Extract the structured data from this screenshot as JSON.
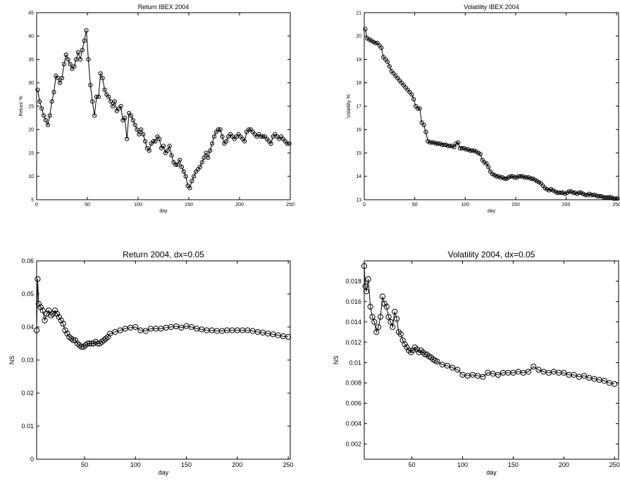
{
  "chart_data": [
    {
      "type": "line",
      "title": "Return IBEX 2004",
      "xlabel": "day",
      "ylabel": "Return %",
      "xlim": [
        0,
        250
      ],
      "ylim": [
        5,
        45
      ],
      "xticks": [
        0,
        50,
        100,
        150,
        200,
        250
      ],
      "yticks": [
        5,
        10,
        15,
        20,
        25,
        30,
        35,
        40,
        45
      ],
      "marker": "open-circle",
      "series": [
        {
          "name": "",
          "x": [
            1,
            3,
            5,
            7,
            9,
            11,
            13,
            15,
            17,
            19,
            21,
            23,
            25,
            27,
            29,
            31,
            33,
            35,
            37,
            39,
            41,
            43,
            45,
            47,
            49,
            51,
            53,
            55,
            57,
            59,
            61,
            63,
            65,
            67,
            69,
            71,
            73,
            75,
            77,
            79,
            81,
            83,
            85,
            87,
            89,
            91,
            93,
            95,
            97,
            99,
            101,
            103,
            105,
            107,
            109,
            111,
            113,
            115,
            117,
            119,
            121,
            123,
            125,
            127,
            129,
            131,
            133,
            135,
            137,
            139,
            141,
            143,
            145,
            147,
            149,
            151,
            153,
            155,
            157,
            159,
            161,
            163,
            165,
            167,
            169,
            171,
            173,
            175,
            177,
            179,
            181,
            183,
            185,
            187,
            189,
            191,
            193,
            195,
            197,
            199,
            201,
            203,
            205,
            207,
            209,
            211,
            213,
            215,
            217,
            219,
            221,
            223,
            225,
            227,
            229,
            231,
            233,
            235,
            237,
            239,
            241,
            243,
            245,
            247,
            249
          ],
          "y": [
            28.5,
            26,
            24.5,
            23,
            22,
            21,
            23,
            26,
            28,
            31.5,
            31,
            30,
            31,
            34,
            36,
            35,
            34,
            33,
            33.5,
            35,
            36.5,
            35,
            37,
            39,
            41.2,
            35,
            29.5,
            26,
            23,
            27,
            27,
            32,
            31,
            28.5,
            27.5,
            27,
            26,
            25,
            26,
            24,
            24.5,
            25,
            22,
            22.5,
            18,
            23.5,
            23,
            22,
            21,
            20,
            19,
            20,
            19,
            17.5,
            16,
            15.5,
            17,
            17.5,
            17.5,
            18.5,
            18,
            16,
            16.5,
            15,
            15.5,
            16.5,
            14.5,
            13,
            12.5,
            12.5,
            13.5,
            12,
            11,
            10,
            8,
            7.5,
            9,
            10,
            11,
            11.5,
            12,
            13,
            14,
            15,
            14,
            15.5,
            17,
            18.5,
            19.5,
            20,
            20,
            18.5,
            17,
            17.5,
            18.5,
            19,
            18.5,
            18,
            18.5,
            19,
            18.5,
            18,
            17.5,
            19.5,
            20,
            20,
            19.5,
            19,
            18.5,
            19,
            18.5,
            18.5,
            18.5,
            18,
            17.5,
            17,
            18.5,
            19,
            18.5,
            18,
            18.5,
            18,
            17.5,
            17,
            17
          ]
        }
      ]
    },
    {
      "type": "line",
      "title": "Volatility IBEX 2004",
      "xlabel": "day",
      "ylabel": "Volatility %",
      "xlim": [
        0,
        252
      ],
      "ylim": [
        13,
        21
      ],
      "xticks": [
        0,
        50,
        100,
        150,
        200,
        250
      ],
      "yticks": [
        13,
        14,
        15,
        16,
        17,
        18,
        19,
        20,
        21
      ],
      "marker": "open-circle",
      "series": [
        {
          "name": "",
          "x": [
            1,
            3,
            5,
            7,
            9,
            11,
            13,
            15,
            17,
            19,
            21,
            23,
            25,
            27,
            29,
            31,
            33,
            35,
            37,
            39,
            41,
            43,
            45,
            47,
            49,
            51,
            53,
            55,
            57,
            59,
            61,
            63,
            65,
            67,
            69,
            71,
            73,
            75,
            77,
            79,
            81,
            83,
            85,
            87,
            89,
            91,
            93,
            95,
            97,
            99,
            101,
            103,
            105,
            107,
            109,
            111,
            113,
            115,
            117,
            119,
            121,
            123,
            125,
            127,
            129,
            131,
            133,
            135,
            137,
            139,
            141,
            143,
            145,
            147,
            149,
            151,
            153,
            155,
            157,
            159,
            161,
            163,
            165,
            167,
            169,
            171,
            173,
            175,
            177,
            179,
            181,
            183,
            185,
            187,
            189,
            191,
            193,
            195,
            197,
            199,
            201,
            203,
            205,
            207,
            209,
            211,
            213,
            215,
            217,
            219,
            221,
            223,
            225,
            227,
            229,
            231,
            233,
            235,
            237,
            239,
            241,
            243,
            245,
            247,
            249,
            251
          ],
          "y": [
            20.3,
            19.9,
            19.85,
            19.8,
            19.75,
            19.7,
            19.7,
            19.6,
            19.5,
            19.1,
            19.0,
            18.9,
            18.7,
            18.5,
            18.4,
            18.3,
            18.2,
            18.1,
            18.0,
            17.9,
            17.8,
            17.7,
            17.6,
            17.5,
            17.3,
            17.0,
            16.9,
            16.9,
            16.3,
            16.2,
            15.9,
            15.5,
            15.45,
            15.45,
            15.45,
            15.4,
            15.4,
            15.4,
            15.35,
            15.35,
            15.35,
            15.3,
            15.3,
            15.3,
            15.25,
            15.4,
            15.45,
            15.2,
            15.2,
            15.2,
            15.15,
            15.15,
            15.1,
            15.1,
            15.1,
            15.05,
            15.0,
            14.95,
            14.7,
            14.6,
            14.55,
            14.4,
            14.2,
            14.1,
            14.05,
            14.0,
            14.0,
            13.95,
            13.95,
            13.9,
            13.9,
            13.95,
            14.0,
            14.0,
            13.95,
            13.95,
            14.0,
            14.0,
            14.0,
            13.95,
            13.95,
            13.95,
            13.9,
            13.9,
            13.85,
            13.8,
            13.75,
            13.7,
            13.6,
            13.5,
            13.45,
            13.4,
            13.45,
            13.4,
            13.35,
            13.3,
            13.3,
            13.3,
            13.3,
            13.25,
            13.3,
            13.35,
            13.35,
            13.3,
            13.3,
            13.25,
            13.3,
            13.3,
            13.25,
            13.2,
            13.2,
            13.25,
            13.2,
            13.2,
            13.2,
            13.15,
            13.15,
            13.15,
            13.1,
            13.1,
            13.1,
            13.1,
            13.1,
            13.05,
            13.05,
            13.05
          ]
        }
      ]
    },
    {
      "type": "line",
      "title": "Return 2004, dx=0.05",
      "xlabel": "day",
      "ylabel": "NS",
      "xlim": [
        3,
        252
      ],
      "ylim": [
        0,
        0.06
      ],
      "xticks": [
        50,
        100,
        150,
        200,
        250
      ],
      "yticks": [
        0,
        0.01,
        0.02,
        0.03,
        0.04,
        0.05,
        0.06
      ],
      "marker": "open-circle",
      "series": [
        {
          "name": "",
          "x": [
            3,
            4,
            5,
            7,
            9,
            11,
            13,
            15,
            17,
            19,
            21,
            23,
            25,
            27,
            29,
            31,
            33,
            35,
            37,
            39,
            41,
            43,
            45,
            47,
            49,
            51,
            53,
            55,
            57,
            59,
            61,
            63,
            65,
            67,
            69,
            71,
            73,
            75,
            80,
            85,
            90,
            95,
            100,
            105,
            110,
            115,
            120,
            125,
            130,
            135,
            140,
            145,
            150,
            155,
            160,
            165,
            170,
            175,
            180,
            185,
            190,
            195,
            200,
            205,
            210,
            215,
            220,
            225,
            230,
            235,
            240,
            245,
            250
          ],
          "y": [
            0.039,
            0.0545,
            0.047,
            0.046,
            0.045,
            0.042,
            0.044,
            0.045,
            0.0435,
            0.044,
            0.045,
            0.044,
            0.043,
            0.042,
            0.041,
            0.039,
            0.038,
            0.037,
            0.0365,
            0.036,
            0.036,
            0.035,
            0.0345,
            0.034,
            0.034,
            0.0345,
            0.035,
            0.035,
            0.035,
            0.035,
            0.0355,
            0.035,
            0.035,
            0.0355,
            0.036,
            0.0365,
            0.037,
            0.038,
            0.0385,
            0.039,
            0.0395,
            0.0398,
            0.04,
            0.039,
            0.0388,
            0.0395,
            0.0395,
            0.0395,
            0.0398,
            0.04,
            0.0402,
            0.0398,
            0.0403,
            0.04,
            0.0395,
            0.0393,
            0.039,
            0.039,
            0.0388,
            0.0388,
            0.039,
            0.039,
            0.039,
            0.039,
            0.039,
            0.0388,
            0.0385,
            0.0383,
            0.038,
            0.0378,
            0.0375,
            0.0372,
            0.037
          ]
        }
      ]
    },
    {
      "type": "line",
      "title": "Volatility 2004, dx=0.05",
      "xlabel": "day",
      "ylabel": "NS",
      "xlim": [
        3,
        254
      ],
      "ylim": [
        0.0005,
        0.02
      ],
      "xticks": [
        50,
        100,
        150,
        200,
        250
      ],
      "yticks": [
        0.002,
        0.004,
        0.006,
        0.008,
        0.01,
        0.012,
        0.014,
        0.016,
        0.018
      ],
      "marker": "open-circle",
      "series": [
        {
          "name": "",
          "x": [
            3,
            4,
            5,
            7,
            9,
            11,
            13,
            15,
            17,
            19,
            21,
            23,
            25,
            27,
            29,
            31,
            33,
            35,
            37,
            39,
            41,
            43,
            45,
            47,
            49,
            51,
            53,
            55,
            57,
            59,
            61,
            63,
            65,
            67,
            69,
            71,
            73,
            75,
            80,
            85,
            90,
            95,
            100,
            105,
            110,
            115,
            120,
            125,
            130,
            135,
            140,
            145,
            150,
            155,
            160,
            165,
            170,
            175,
            180,
            185,
            190,
            195,
            200,
            205,
            210,
            215,
            220,
            225,
            230,
            235,
            240,
            245,
            250
          ],
          "y": [
            0.0195,
            0.0175,
            0.017,
            0.0182,
            0.0155,
            0.0145,
            0.014,
            0.013,
            0.0135,
            0.0145,
            0.0165,
            0.0158,
            0.0155,
            0.0145,
            0.014,
            0.0135,
            0.015,
            0.0143,
            0.013,
            0.0128,
            0.0122,
            0.0118,
            0.0115,
            0.0112,
            0.011,
            0.0112,
            0.0115,
            0.0113,
            0.011,
            0.0112,
            0.011,
            0.0108,
            0.0108,
            0.0106,
            0.0105,
            0.0103,
            0.0102,
            0.0101,
            0.0098,
            0.0097,
            0.0095,
            0.0093,
            0.0088,
            0.0087,
            0.0088,
            0.0087,
            0.0086,
            0.009,
            0.0089,
            0.0088,
            0.009,
            0.009,
            0.009,
            0.0091,
            0.009,
            0.0091,
            0.0096,
            0.0093,
            0.0091,
            0.009,
            0.0091,
            0.009,
            0.009,
            0.0088,
            0.0088,
            0.0086,
            0.0087,
            0.0085,
            0.0084,
            0.0083,
            0.0082,
            0.008,
            0.0079
          ]
        }
      ]
    }
  ]
}
